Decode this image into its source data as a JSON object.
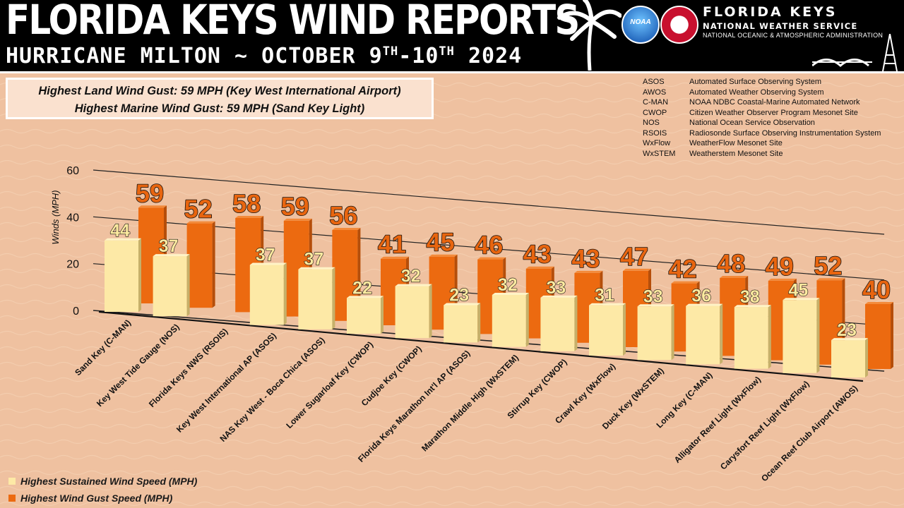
{
  "header": {
    "title": "FLORIDA KEYS WIND REPORTS",
    "subtitle_main": "HURRICANE MILTON ~ OCTOBER 9",
    "subtitle_sup1": "TH",
    "subtitle_mid": "-10",
    "subtitle_sup2": "TH",
    "subtitle_year": " 2024",
    "org_line1": "FLORIDA KEYS",
    "org_line2": "NATIONAL WEATHER SERVICE",
    "org_line3": "NATIONAL OCEANIC & ATMOSPHERIC ADMINISTRATION",
    "logo_text": "NOAA"
  },
  "highlights": {
    "land": "Highest Land Wind Gust: 59 MPH (Key West International Airport)",
    "marine": "Highest Marine Wind Gust: 59 MPH (Sand Key Light)"
  },
  "abbreviations": [
    {
      "code": "ASOS",
      "desc": "Automated Surface Observing System"
    },
    {
      "code": "AWOS",
      "desc": "Automated Weather Observing System"
    },
    {
      "code": "C-MAN",
      "desc": "NOAA NDBC Coastal-Marine Automated Network"
    },
    {
      "code": "CWOP",
      "desc": "Citizen Weather Observer Program Mesonet Site"
    },
    {
      "code": "NOS",
      "desc": "National Ocean Service Observation"
    },
    {
      "code": "RSOIS",
      "desc": "Radiosonde Surface Observing Instrumentation System"
    },
    {
      "code": "WxFlow",
      "desc": "WeatherFlow Mesonet Site"
    },
    {
      "code": "WxSTEM",
      "desc": "Weatherstem Mesonet Site"
    }
  ],
  "colors": {
    "sustained": "#fde9a6",
    "gust": "#ec6a10",
    "label_sustained": "#fdeaa0",
    "label_gust": "#e8650f"
  },
  "chart_data": {
    "type": "bar",
    "ylabel": "Winds (MPH)",
    "ylim": [
      0,
      60
    ],
    "yticks": [
      0,
      20,
      40,
      60
    ],
    "grid": true,
    "categories": [
      "Sand Key (C-MAN)",
      "Key West Tide Gauge (NOS)",
      "Florida Keys NWS (RSOIS)",
      "Key West International AP (ASOS)",
      "NAS Key West - Boca Chica (ASOS)",
      "Lower Sugarloaf Key (CWOP)",
      "Cudjoe Key (CWOP)",
      "Florida Keys Marathon Int'l AP (ASOS)",
      "Marathon Middle High (WxSTEM)",
      "Stirrup Key (CWOP)",
      "Crawl Key (WxFlow)",
      "Duck Key (WxSTEM)",
      "Long Key (C-MAN)",
      "Alligator Reef Light (WxFlow)",
      "Carysfort Reef Light (WxFlow)",
      "Ocean Reef Club Airport (AWOS)"
    ],
    "series": [
      {
        "name": "Highest Sustained Wind Speed (MPH)",
        "values": [
          44,
          37,
          null,
          37,
          37,
          22,
          32,
          23,
          32,
          33,
          31,
          33,
          36,
          38,
          45,
          23
        ]
      },
      {
        "name": "Highest Wind Gust Speed (MPH)",
        "values": [
          59,
          52,
          58,
          59,
          56,
          41,
          45,
          46,
          43,
          43,
          47,
          42,
          48,
          49,
          52,
          40
        ]
      }
    ]
  }
}
